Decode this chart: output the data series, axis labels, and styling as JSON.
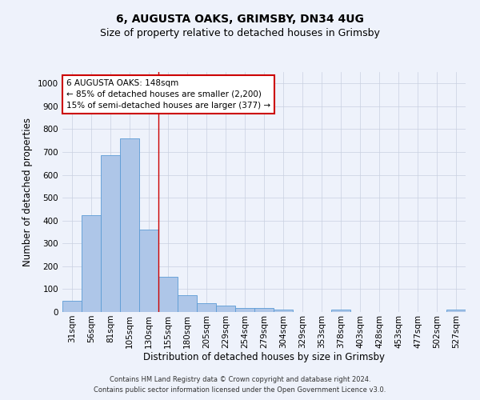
{
  "title": "6, AUGUSTA OAKS, GRIMSBY, DN34 4UG",
  "subtitle": "Size of property relative to detached houses in Grimsby",
  "xlabel": "Distribution of detached houses by size in Grimsby",
  "ylabel": "Number of detached properties",
  "categories": [
    "31sqm",
    "56sqm",
    "81sqm",
    "105sqm",
    "130sqm",
    "155sqm",
    "180sqm",
    "205sqm",
    "229sqm",
    "254sqm",
    "279sqm",
    "304sqm",
    "329sqm",
    "353sqm",
    "378sqm",
    "403sqm",
    "428sqm",
    "453sqm",
    "477sqm",
    "502sqm",
    "527sqm"
  ],
  "values": [
    50,
    425,
    685,
    760,
    360,
    155,
    75,
    40,
    28,
    18,
    18,
    10,
    0,
    0,
    10,
    0,
    0,
    0,
    0,
    0,
    10
  ],
  "bar_color": "#aec6e8",
  "bar_edge_color": "#5b9bd5",
  "ylim": [
    0,
    1050
  ],
  "yticks": [
    0,
    100,
    200,
    300,
    400,
    500,
    600,
    700,
    800,
    900,
    1000
  ],
  "vline_x": 4.5,
  "vline_color": "#cc0000",
  "annotation_text": "6 AUGUSTA OAKS: 148sqm\n← 85% of detached houses are smaller (2,200)\n15% of semi-detached houses are larger (377) →",
  "annotation_box_color": "#ffffff",
  "annotation_box_edge": "#cc0000",
  "footer_line1": "Contains HM Land Registry data © Crown copyright and database right 2024.",
  "footer_line2": "Contains public sector information licensed under the Open Government Licence v3.0.",
  "title_fontsize": 10,
  "subtitle_fontsize": 9,
  "tick_fontsize": 7.5,
  "ylabel_fontsize": 8.5,
  "xlabel_fontsize": 8.5,
  "annotation_fontsize": 7.5,
  "footer_fontsize": 6,
  "background_color": "#eef2fb"
}
